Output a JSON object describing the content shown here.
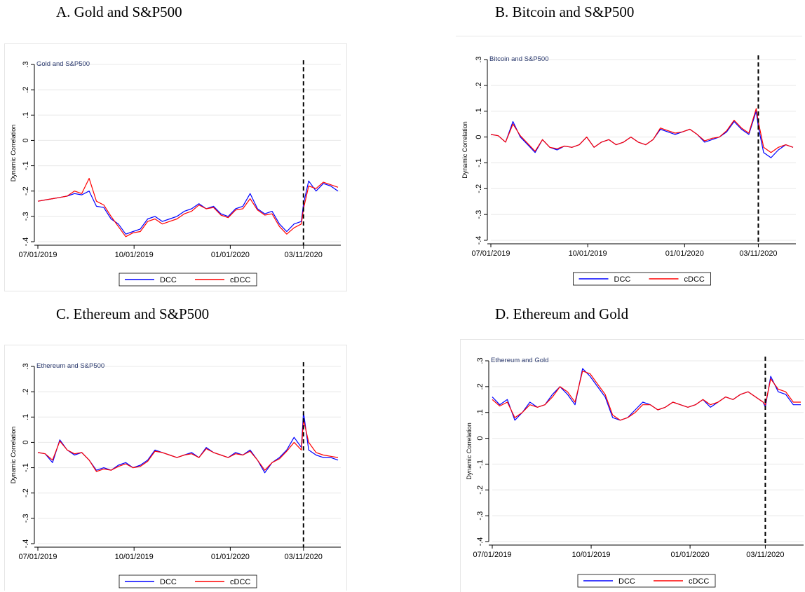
{
  "panels": [
    {
      "heading": "A.  Gold and S&P500"
    },
    {
      "heading": "B. Bitcoin and S&P500"
    },
    {
      "heading": "C. Ethereum and S&P500"
    },
    {
      "heading": "D. Ethereum and Gold"
    }
  ],
  "chart_data": [
    {
      "type": "line",
      "title": "Gold and S&P500",
      "ylabel": "Dynamic Correlation",
      "xlabel": "",
      "ylim": [
        -0.4,
        0.3
      ],
      "yticks": [
        0.3,
        0.2,
        0.1,
        0,
        -0.1,
        -0.2,
        -0.3,
        -0.4
      ],
      "ytick_labels": [
        ".3",
        ".2",
        ".1",
        "0",
        "-.1",
        "-.2",
        "-.3",
        "-.4"
      ],
      "xticks": [
        "07/01/2019",
        "10/01/2019",
        "01/01/2020",
        "03/11/2020"
      ],
      "event_line": "03/11/2020",
      "grid": true,
      "legend": "bottom",
      "series": [
        {
          "name": "DCC",
          "color": "#0000ff",
          "x": [
            "07/01/2019",
            "07/08/2019",
            "07/15/2019",
            "07/22/2019",
            "07/29/2019",
            "08/05/2019",
            "08/12/2019",
            "08/19/2019",
            "08/26/2019",
            "09/02/2019",
            "09/09/2019",
            "09/16/2019",
            "09/23/2019",
            "09/30/2019",
            "10/07/2019",
            "10/14/2019",
            "10/21/2019",
            "10/28/2019",
            "11/04/2019",
            "11/11/2019",
            "11/18/2019",
            "11/25/2019",
            "12/02/2019",
            "12/09/2019",
            "12/16/2019",
            "12/23/2019",
            "12/30/2019",
            "01/06/2020",
            "01/13/2020",
            "01/20/2020",
            "01/27/2020",
            "02/03/2020",
            "02/10/2020",
            "02/17/2020",
            "02/24/2020",
            "03/02/2020",
            "03/09/2020",
            "03/11/2020",
            "03/16/2020",
            "03/23/2020",
            "03/30/2020",
            "04/06/2020",
            "04/13/2020"
          ],
          "y": [
            -0.24,
            -0.235,
            -0.23,
            -0.225,
            -0.22,
            -0.21,
            -0.215,
            -0.2,
            -0.26,
            -0.265,
            -0.31,
            -0.33,
            -0.37,
            -0.36,
            -0.35,
            -0.31,
            -0.3,
            -0.32,
            -0.31,
            -0.3,
            -0.28,
            -0.27,
            -0.25,
            -0.27,
            -0.26,
            -0.29,
            -0.3,
            -0.27,
            -0.26,
            -0.21,
            -0.27,
            -0.29,
            -0.28,
            -0.33,
            -0.36,
            -0.33,
            -0.32,
            -0.25,
            -0.16,
            -0.2,
            -0.17,
            -0.18,
            -0.2
          ]
        },
        {
          "name": "cDCC",
          "color": "#ff0000",
          "x": [
            "07/01/2019",
            "07/08/2019",
            "07/15/2019",
            "07/22/2019",
            "07/29/2019",
            "08/05/2019",
            "08/12/2019",
            "08/19/2019",
            "08/26/2019",
            "09/02/2019",
            "09/09/2019",
            "09/16/2019",
            "09/23/2019",
            "09/30/2019",
            "10/07/2019",
            "10/14/2019",
            "10/21/2019",
            "10/28/2019",
            "11/04/2019",
            "11/11/2019",
            "11/18/2019",
            "11/25/2019",
            "12/02/2019",
            "12/09/2019",
            "12/16/2019",
            "12/23/2019",
            "12/30/2019",
            "01/06/2020",
            "01/13/2020",
            "01/20/2020",
            "01/27/2020",
            "02/03/2020",
            "02/10/2020",
            "02/17/2020",
            "02/24/2020",
            "03/02/2020",
            "03/09/2020",
            "03/11/2020",
            "03/16/2020",
            "03/23/2020",
            "03/30/2020",
            "04/06/2020",
            "04/13/2020"
          ],
          "y": [
            -0.24,
            -0.235,
            -0.23,
            -0.225,
            -0.22,
            -0.2,
            -0.21,
            -0.15,
            -0.24,
            -0.255,
            -0.3,
            -0.34,
            -0.38,
            -0.365,
            -0.36,
            -0.32,
            -0.31,
            -0.33,
            -0.32,
            -0.31,
            -0.29,
            -0.28,
            -0.255,
            -0.27,
            -0.265,
            -0.295,
            -0.305,
            -0.275,
            -0.27,
            -0.23,
            -0.275,
            -0.295,
            -0.29,
            -0.34,
            -0.37,
            -0.345,
            -0.33,
            -0.27,
            -0.18,
            -0.19,
            -0.165,
            -0.175,
            -0.185
          ]
        }
      ]
    },
    {
      "type": "line",
      "title": "Bitcoin and S&P500",
      "ylabel": "Dynamic Correlation",
      "xlabel": "",
      "ylim": [
        -0.4,
        0.3
      ],
      "yticks": [
        0.3,
        0.2,
        0.1,
        0,
        -0.1,
        -0.2,
        -0.3,
        -0.4
      ],
      "ytick_labels": [
        ".3",
        ".2",
        ".1",
        "0",
        "-.1",
        "-.2",
        "-.3",
        "-.4"
      ],
      "xticks": [
        "07/01/2019",
        "10/01/2019",
        "01/01/2020",
        "03/11/2020"
      ],
      "event_line": "03/11/2020",
      "grid": true,
      "legend": "bottom",
      "series": [
        {
          "name": "DCC",
          "color": "#0000ff",
          "x": [
            "07/01/2019",
            "07/08/2019",
            "07/15/2019",
            "07/22/2019",
            "07/29/2019",
            "08/05/2019",
            "08/12/2019",
            "08/19/2019",
            "08/26/2019",
            "09/02/2019",
            "09/09/2019",
            "09/16/2019",
            "09/23/2019",
            "09/30/2019",
            "10/07/2019",
            "10/14/2019",
            "10/21/2019",
            "10/28/2019",
            "11/04/2019",
            "11/11/2019",
            "11/18/2019",
            "11/25/2019",
            "12/02/2019",
            "12/09/2019",
            "12/16/2019",
            "12/23/2019",
            "12/30/2019",
            "01/06/2020",
            "01/13/2020",
            "01/20/2020",
            "01/27/2020",
            "02/03/2020",
            "02/10/2020",
            "02/17/2020",
            "02/24/2020",
            "03/02/2020",
            "03/09/2020",
            "03/11/2020",
            "03/16/2020",
            "03/23/2020",
            "03/30/2020",
            "04/06/2020",
            "04/13/2020"
          ],
          "y": [
            0.01,
            0.005,
            -0.02,
            0.06,
            0.0,
            -0.03,
            -0.06,
            -0.01,
            -0.04,
            -0.05,
            -0.035,
            -0.04,
            -0.03,
            0.0,
            -0.04,
            -0.02,
            -0.01,
            -0.03,
            -0.02,
            0.0,
            -0.02,
            -0.03,
            -0.01,
            0.03,
            0.02,
            0.01,
            0.02,
            0.03,
            0.01,
            -0.02,
            -0.01,
            0.0,
            0.02,
            0.06,
            0.03,
            0.01,
            0.1,
            0.04,
            -0.06,
            -0.08,
            -0.05,
            -0.03,
            -0.04
          ]
        },
        {
          "name": "cDCC",
          "color": "#ff0000",
          "x": [
            "07/01/2019",
            "07/08/2019",
            "07/15/2019",
            "07/22/2019",
            "07/29/2019",
            "08/05/2019",
            "08/12/2019",
            "08/19/2019",
            "08/26/2019",
            "09/02/2019",
            "09/09/2019",
            "09/16/2019",
            "09/23/2019",
            "09/30/2019",
            "10/07/2019",
            "10/14/2019",
            "10/21/2019",
            "10/28/2019",
            "11/04/2019",
            "11/11/2019",
            "11/18/2019",
            "11/25/2019",
            "12/02/2019",
            "12/09/2019",
            "12/16/2019",
            "12/23/2019",
            "12/30/2019",
            "01/06/2020",
            "01/13/2020",
            "01/20/2020",
            "01/27/2020",
            "02/03/2020",
            "02/10/2020",
            "02/17/2020",
            "02/24/2020",
            "03/02/2020",
            "03/09/2020",
            "03/11/2020",
            "03/16/2020",
            "03/23/2020",
            "03/30/2020",
            "04/06/2020",
            "04/13/2020"
          ],
          "y": [
            0.01,
            0.005,
            -0.02,
            0.05,
            0.005,
            -0.025,
            -0.055,
            -0.01,
            -0.04,
            -0.045,
            -0.035,
            -0.04,
            -0.03,
            0.0,
            -0.04,
            -0.02,
            -0.01,
            -0.03,
            -0.02,
            0.0,
            -0.02,
            -0.03,
            -0.01,
            0.035,
            0.025,
            0.015,
            0.02,
            0.03,
            0.01,
            -0.015,
            -0.005,
            0.0,
            0.025,
            0.065,
            0.035,
            0.015,
            0.11,
            0.06,
            -0.04,
            -0.06,
            -0.04,
            -0.03,
            -0.04
          ]
        }
      ]
    },
    {
      "type": "line",
      "title": "Ethereum and S&P500",
      "ylabel": "Dynamic Correlation",
      "xlabel": "",
      "ylim": [
        -0.4,
        0.3
      ],
      "yticks": [
        0.3,
        0.2,
        0.1,
        0,
        -0.1,
        -0.2,
        -0.3,
        -0.4
      ],
      "ytick_labels": [
        ".3",
        ".2",
        ".1",
        "0",
        "-.1",
        "-.2",
        "-.3",
        "-.4"
      ],
      "xticks": [
        "07/01/2019",
        "10/01/2019",
        "01/01/2020",
        "03/11/2020"
      ],
      "event_line": "03/11/2020",
      "grid": true,
      "legend": "bottom",
      "series": [
        {
          "name": "DCC",
          "color": "#0000ff",
          "x": [
            "07/01/2019",
            "07/08/2019",
            "07/15/2019",
            "07/22/2019",
            "07/29/2019",
            "08/05/2019",
            "08/12/2019",
            "08/19/2019",
            "08/26/2019",
            "09/02/2019",
            "09/09/2019",
            "09/16/2019",
            "09/23/2019",
            "09/30/2019",
            "10/07/2019",
            "10/14/2019",
            "10/21/2019",
            "10/28/2019",
            "11/04/2019",
            "11/11/2019",
            "11/18/2019",
            "11/25/2019",
            "12/02/2019",
            "12/09/2019",
            "12/16/2019",
            "12/23/2019",
            "12/30/2019",
            "01/06/2020",
            "01/13/2020",
            "01/20/2020",
            "01/27/2020",
            "02/03/2020",
            "02/10/2020",
            "02/17/2020",
            "02/24/2020",
            "03/02/2020",
            "03/09/2020",
            "03/11/2020",
            "03/16/2020",
            "03/23/2020",
            "03/30/2020",
            "04/06/2020",
            "04/13/2020"
          ],
          "y": [
            -0.04,
            -0.045,
            -0.08,
            0.01,
            -0.03,
            -0.05,
            -0.04,
            -0.07,
            -0.11,
            -0.1,
            -0.11,
            -0.09,
            -0.08,
            -0.1,
            -0.09,
            -0.07,
            -0.03,
            -0.04,
            -0.05,
            -0.06,
            -0.05,
            -0.04,
            -0.06,
            -0.02,
            -0.04,
            -0.05,
            -0.06,
            -0.04,
            -0.05,
            -0.03,
            -0.07,
            -0.12,
            -0.08,
            -0.06,
            -0.03,
            0.02,
            -0.02,
            0.12,
            -0.03,
            -0.05,
            -0.06,
            -0.06,
            -0.07
          ]
        },
        {
          "name": "cDCC",
          "color": "#ff0000",
          "x": [
            "07/01/2019",
            "07/08/2019",
            "07/15/2019",
            "07/22/2019",
            "07/29/2019",
            "08/05/2019",
            "08/12/2019",
            "08/19/2019",
            "08/26/2019",
            "09/02/2019",
            "09/09/2019",
            "09/16/2019",
            "09/23/2019",
            "09/30/2019",
            "10/07/2019",
            "10/14/2019",
            "10/21/2019",
            "10/28/2019",
            "11/04/2019",
            "11/11/2019",
            "11/18/2019",
            "11/25/2019",
            "12/02/2019",
            "12/09/2019",
            "12/16/2019",
            "12/23/2019",
            "12/30/2019",
            "01/06/2020",
            "01/13/2020",
            "01/20/2020",
            "01/27/2020",
            "02/03/2020",
            "02/10/2020",
            "02/17/2020",
            "02/24/2020",
            "03/02/2020",
            "03/09/2020",
            "03/11/2020",
            "03/16/2020",
            "03/23/2020",
            "03/30/2020",
            "04/06/2020",
            "04/13/2020"
          ],
          "y": [
            -0.04,
            -0.045,
            -0.07,
            0.005,
            -0.03,
            -0.045,
            -0.04,
            -0.07,
            -0.115,
            -0.105,
            -0.11,
            -0.095,
            -0.085,
            -0.1,
            -0.095,
            -0.075,
            -0.035,
            -0.04,
            -0.05,
            -0.06,
            -0.05,
            -0.045,
            -0.06,
            -0.025,
            -0.04,
            -0.05,
            -0.06,
            -0.045,
            -0.05,
            -0.035,
            -0.07,
            -0.11,
            -0.08,
            -0.065,
            -0.035,
            0.0,
            -0.03,
            0.09,
            0.0,
            -0.04,
            -0.05,
            -0.055,
            -0.06
          ]
        }
      ]
    },
    {
      "type": "line",
      "title": "Ethereum and Gold",
      "ylabel": "Dynamic Correlation",
      "xlabel": "",
      "ylim": [
        -0.4,
        0.3
      ],
      "yticks": [
        0.3,
        0.2,
        0.1,
        0,
        -0.1,
        -0.2,
        -0.3,
        -0.4
      ],
      "ytick_labels": [
        ".3",
        ".2",
        ".1",
        "0",
        "-.1",
        "-.2",
        "-.3",
        "-.4"
      ],
      "xticks": [
        "07/01/2019",
        "10/01/2019",
        "01/01/2020",
        "03/11/2020"
      ],
      "event_line": "03/11/2020",
      "grid": true,
      "legend": "bottom",
      "series": [
        {
          "name": "DCC",
          "color": "#0000ff",
          "x": [
            "07/01/2019",
            "07/08/2019",
            "07/15/2019",
            "07/22/2019",
            "07/29/2019",
            "08/05/2019",
            "08/12/2019",
            "08/19/2019",
            "08/26/2019",
            "09/02/2019",
            "09/09/2019",
            "09/16/2019",
            "09/23/2019",
            "09/30/2019",
            "10/07/2019",
            "10/14/2019",
            "10/21/2019",
            "10/28/2019",
            "11/04/2019",
            "11/11/2019",
            "11/18/2019",
            "11/25/2019",
            "12/02/2019",
            "12/09/2019",
            "12/16/2019",
            "12/23/2019",
            "12/30/2019",
            "01/06/2020",
            "01/13/2020",
            "01/20/2020",
            "01/27/2020",
            "02/03/2020",
            "02/10/2020",
            "02/17/2020",
            "02/24/2020",
            "03/02/2020",
            "03/09/2020",
            "03/11/2020",
            "03/16/2020",
            "03/23/2020",
            "03/30/2020",
            "04/06/2020",
            "04/13/2020"
          ],
          "y": [
            0.16,
            0.13,
            0.15,
            0.07,
            0.1,
            0.14,
            0.12,
            0.13,
            0.17,
            0.2,
            0.17,
            0.13,
            0.27,
            0.24,
            0.2,
            0.16,
            0.08,
            0.07,
            0.08,
            0.11,
            0.14,
            0.13,
            0.11,
            0.12,
            0.14,
            0.13,
            0.12,
            0.13,
            0.15,
            0.12,
            0.14,
            0.16,
            0.15,
            0.17,
            0.18,
            0.16,
            0.14,
            0.12,
            0.24,
            0.18,
            0.17,
            0.13,
            0.13
          ]
        },
        {
          "name": "cDCC",
          "color": "#ff0000",
          "x": [
            "07/01/2019",
            "07/08/2019",
            "07/15/2019",
            "07/22/2019",
            "07/29/2019",
            "08/05/2019",
            "08/12/2019",
            "08/19/2019",
            "08/26/2019",
            "09/02/2019",
            "09/09/2019",
            "09/16/2019",
            "09/23/2019",
            "09/30/2019",
            "10/07/2019",
            "10/14/2019",
            "10/21/2019",
            "10/28/2019",
            "11/04/2019",
            "11/11/2019",
            "11/18/2019",
            "11/25/2019",
            "12/02/2019",
            "12/09/2019",
            "12/16/2019",
            "12/23/2019",
            "12/30/2019",
            "01/06/2020",
            "01/13/2020",
            "01/20/2020",
            "01/27/2020",
            "02/03/2020",
            "02/10/2020",
            "02/17/2020",
            "02/24/2020",
            "03/02/2020",
            "03/09/2020",
            "03/11/2020",
            "03/16/2020",
            "03/23/2020",
            "03/30/2020",
            "04/06/2020",
            "04/13/2020"
          ],
          "y": [
            0.15,
            0.125,
            0.14,
            0.08,
            0.1,
            0.13,
            0.12,
            0.13,
            0.16,
            0.2,
            0.18,
            0.14,
            0.26,
            0.25,
            0.21,
            0.17,
            0.09,
            0.07,
            0.08,
            0.1,
            0.13,
            0.13,
            0.11,
            0.12,
            0.14,
            0.13,
            0.12,
            0.13,
            0.15,
            0.13,
            0.14,
            0.16,
            0.15,
            0.17,
            0.18,
            0.16,
            0.14,
            0.13,
            0.23,
            0.19,
            0.18,
            0.14,
            0.14
          ]
        }
      ]
    }
  ]
}
